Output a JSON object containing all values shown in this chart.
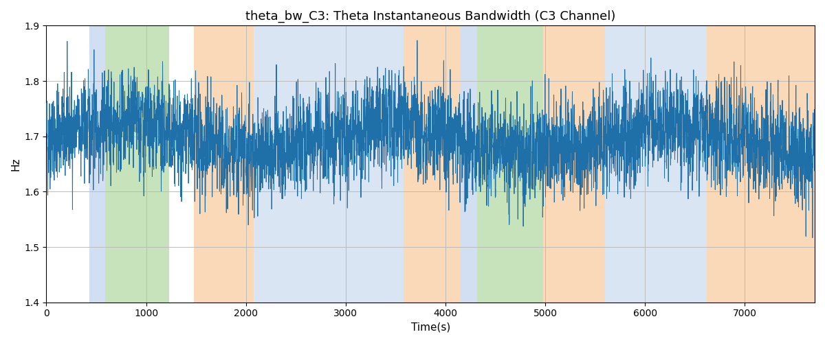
{
  "title": "theta_bw_C3: Theta Instantaneous Bandwidth (C3 Channel)",
  "xlabel": "Time(s)",
  "ylabel": "Hz",
  "ylim": [
    1.4,
    1.9
  ],
  "xlim": [
    0,
    7700
  ],
  "line_color": "#1f6fa8",
  "line_width": 0.7,
  "bg_color": "#ffffff",
  "grid_color": "#bbbbbb",
  "bands": [
    {
      "xmin": 430,
      "xmax": 590,
      "color": "#aec6e8",
      "alpha": 0.55
    },
    {
      "xmin": 590,
      "xmax": 1230,
      "color": "#90c97a",
      "alpha": 0.5
    },
    {
      "xmin": 1480,
      "xmax": 2080,
      "color": "#f5c18a",
      "alpha": 0.6
    },
    {
      "xmin": 2080,
      "xmax": 3580,
      "color": "#aec6e8",
      "alpha": 0.45
    },
    {
      "xmin": 3580,
      "xmax": 4150,
      "color": "#f5c18a",
      "alpha": 0.6
    },
    {
      "xmin": 4150,
      "xmax": 4320,
      "color": "#aec6e8",
      "alpha": 0.55
    },
    {
      "xmin": 4320,
      "xmax": 4980,
      "color": "#90c97a",
      "alpha": 0.5
    },
    {
      "xmin": 4980,
      "xmax": 5600,
      "color": "#f5c18a",
      "alpha": 0.6
    },
    {
      "xmin": 5600,
      "xmax": 6620,
      "color": "#aec6e8",
      "alpha": 0.45
    },
    {
      "xmin": 6620,
      "xmax": 7700,
      "color": "#f5c18a",
      "alpha": 0.6
    }
  ],
  "seed": 42,
  "n_points": 7700,
  "signal_mean": 1.695,
  "signal_std": 0.068,
  "signal_low_freq_amp": 0.025,
  "signal_low_freq_period": 2800,
  "title_fontsize": 13,
  "tick_fontsize": 10,
  "label_fontsize": 11
}
